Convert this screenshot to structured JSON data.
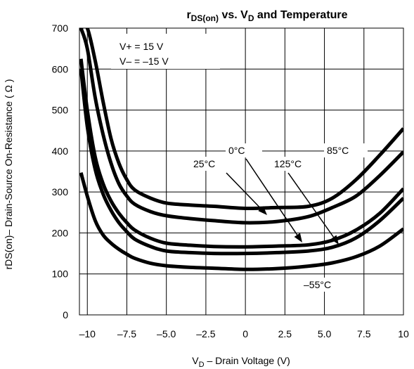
{
  "chart_data": {
    "type": "line",
    "title_main": "r",
    "title_sub": "DS(on)",
    "title_mid": " vs. V",
    "title_sub2": "D",
    "title_end": " and Temperature",
    "xlabel_main": "V",
    "xlabel_sub": "D",
    "xlabel_rest": " – Drain Voltage (V)",
    "ylabel": "rDS(on)– Drain-Source On-Resistance (  Ω )",
    "xlim": [
      -10.5,
      10
    ],
    "ylim": [
      0,
      700
    ],
    "x_ticks": [
      "–10",
      "–7.5",
      "–5.0",
      "–2.5",
      "0",
      "2.5",
      "5.0",
      "7.5",
      "10"
    ],
    "x_tick_values": [
      -10,
      -7.5,
      -5,
      -2.5,
      0,
      2.5,
      5,
      7.5,
      10
    ],
    "y_ticks": [
      "0",
      "100",
      "200",
      "300",
      "400",
      "500",
      "600",
      "700"
    ],
    "y_tick_values": [
      0,
      100,
      200,
      300,
      400,
      500,
      600,
      700
    ],
    "grid": true,
    "conditions": [
      "V+ = 15 V",
      "V– = –15 V"
    ],
    "series": [
      {
        "name": "125°C",
        "x": [
          -10.4,
          -10.0,
          -9.5,
          -9.0,
          -8.5,
          -8.0,
          -7.5,
          -7.0,
          -6.0,
          -5.0,
          -3.5,
          -2.0,
          0.0,
          2.0,
          4.0,
          5.5,
          7.0,
          8.5,
          10.0
        ],
        "y": [
          700,
          700,
          620,
          520,
          430,
          370,
          330,
          305,
          285,
          273,
          268,
          265,
          260,
          262,
          265,
          285,
          330,
          390,
          455
        ]
      },
      {
        "name": "85°C",
        "x": [
          -10.4,
          -10.0,
          -9.5,
          -9.0,
          -8.5,
          -8.0,
          -7.5,
          -7.0,
          -6.0,
          -5.0,
          -3.5,
          -2.0,
          0.0,
          2.0,
          4.0,
          5.5,
          7.0,
          8.5,
          10.0
        ],
        "y": [
          700,
          650,
          530,
          440,
          370,
          320,
          290,
          270,
          252,
          242,
          235,
          230,
          225,
          228,
          240,
          262,
          290,
          340,
          398
        ]
      },
      {
        "name": "25°C",
        "x": [
          -10.4,
          -10.0,
          -9.5,
          -9.0,
          -8.5,
          -8.0,
          -7.5,
          -7.0,
          -6.0,
          -5.0,
          -3.5,
          -2.0,
          0.0,
          2.0,
          4.0,
          5.5,
          7.0,
          8.5,
          10.0
        ],
        "y": [
          625,
          500,
          385,
          320,
          278,
          248,
          225,
          207,
          187,
          175,
          170,
          167,
          166,
          168,
          171,
          182,
          207,
          248,
          308
        ]
      },
      {
        "name": "0°C",
        "x": [
          -10.4,
          -10.0,
          -9.5,
          -9.0,
          -8.5,
          -8.0,
          -7.5,
          -7.0,
          -6.0,
          -5.0,
          -3.5,
          -2.0,
          0.0,
          2.0,
          4.0,
          5.5,
          7.0,
          8.5,
          10.0
        ],
        "y": [
          600,
          460,
          355,
          295,
          255,
          225,
          203,
          185,
          167,
          156,
          152,
          150,
          150,
          152,
          156,
          165,
          188,
          230,
          285
        ]
      },
      {
        "name": "–55°C",
        "x": [
          -10.4,
          -10.0,
          -9.5,
          -9.0,
          -8.5,
          -8.0,
          -7.5,
          -7.0,
          -6.0,
          -5.0,
          -3.5,
          -2.0,
          0.0,
          2.0,
          4.0,
          5.5,
          7.0,
          8.5,
          10.0
        ],
        "y": [
          347,
          290,
          230,
          195,
          175,
          160,
          148,
          138,
          126,
          120,
          116,
          114,
          111,
          113,
          119,
          127,
          142,
          168,
          210
        ]
      }
    ],
    "annotations": [
      "85°C",
      "25°C",
      "0°C",
      "125°C",
      "–55°C"
    ]
  }
}
